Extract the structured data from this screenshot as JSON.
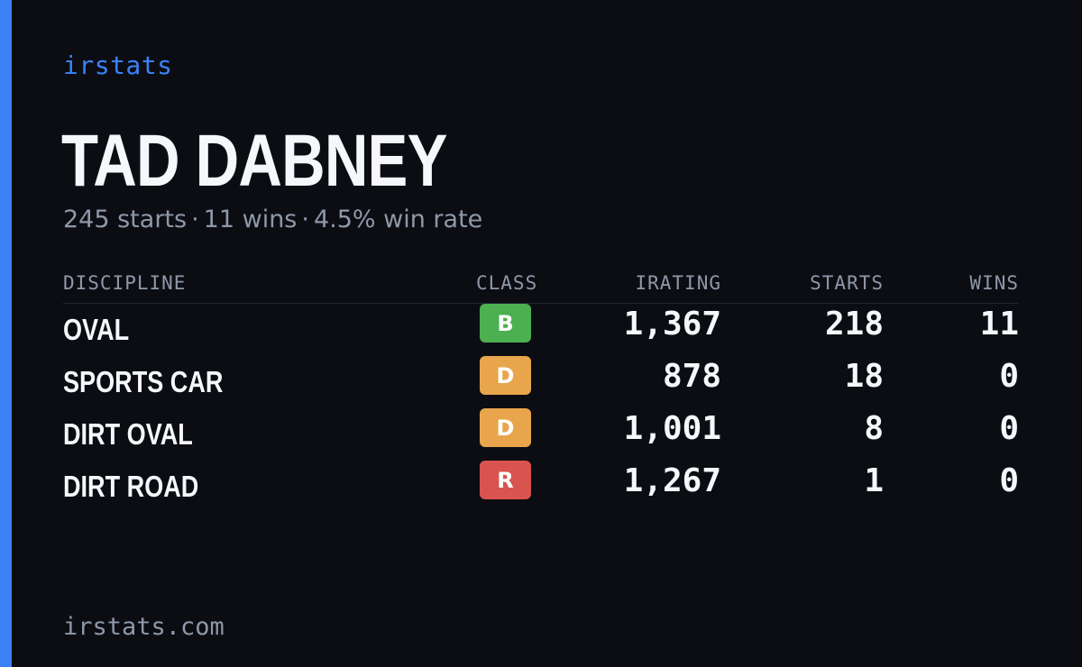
{
  "brand": "irstats",
  "driver": {
    "name": "TAD DABNEY",
    "starts_text": "245 starts",
    "wins_text": "11 wins",
    "win_rate_text": "4.5% win rate",
    "separator": "·"
  },
  "table": {
    "headers": {
      "discipline": "DISCIPLINE",
      "class": "CLASS",
      "irating": "IRATING",
      "starts": "STARTS",
      "wins": "WINS"
    },
    "rows": [
      {
        "discipline": "OVAL",
        "class": "B",
        "class_color": "#4caf50",
        "irating": "1,367",
        "starts": "218",
        "wins": "11"
      },
      {
        "discipline": "SPORTS CAR",
        "class": "D",
        "class_color": "#e8a54b",
        "irating": "878",
        "starts": "18",
        "wins": "0"
      },
      {
        "discipline": "DIRT OVAL",
        "class": "D",
        "class_color": "#e8a54b",
        "irating": "1,001",
        "starts": "8",
        "wins": "0"
      },
      {
        "discipline": "DIRT ROAD",
        "class": "R",
        "class_color": "#d9534f",
        "irating": "1,267",
        "starts": "1",
        "wins": "0"
      }
    ]
  },
  "footer": "irstats.com",
  "colors": {
    "accent": "#3b82f6",
    "background": "#0b0d13",
    "text_primary": "#f5f7fb",
    "text_muted": "#8f98a8"
  }
}
